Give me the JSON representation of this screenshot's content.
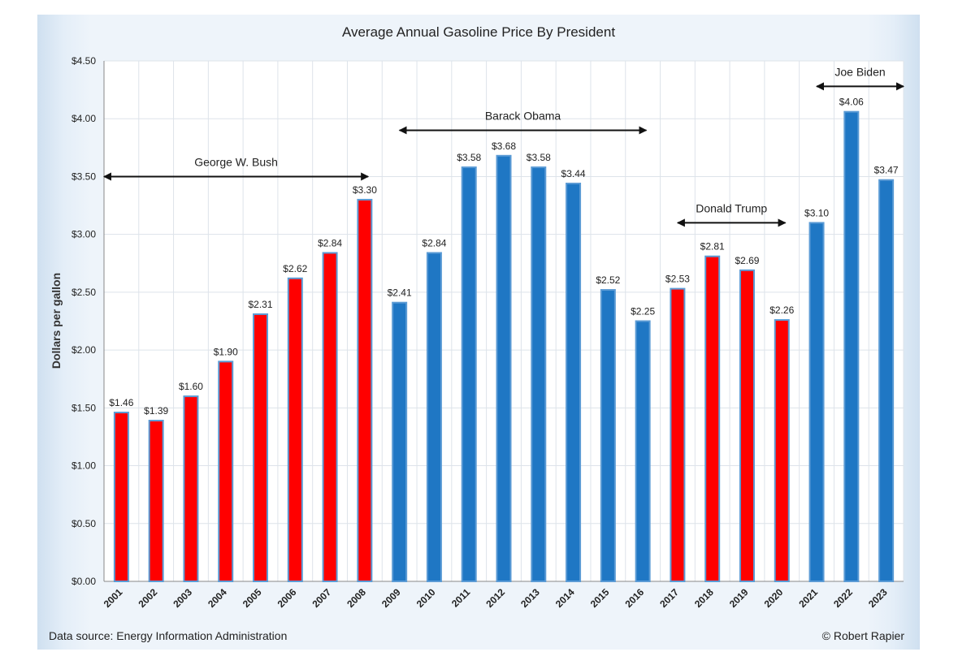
{
  "title": "Average Annual Gasoline Price By President",
  "footer": {
    "source": "Data source: Energy Information Administration",
    "credit": "© Robert Rapier"
  },
  "colors": {
    "red": "#ff0000",
    "blue": "#1f77c4",
    "grid": "#dde3ea",
    "outline": "#5b9bd5"
  },
  "chart_data": {
    "type": "bar",
    "title": "Average Annual Gasoline Price By President",
    "xlabel": "",
    "ylabel": "Dollars per gallon",
    "ylim": [
      0,
      4.5
    ],
    "yticks": [
      "$0.00",
      "$0.50",
      "$1.00",
      "$1.50",
      "$2.00",
      "$2.50",
      "$3.00",
      "$3.50",
      "$4.00",
      "$4.50"
    ],
    "grid": true,
    "categories": [
      "2001",
      "2002",
      "2003",
      "2004",
      "2005",
      "2006",
      "2007",
      "2008",
      "2009",
      "2010",
      "2011",
      "2012",
      "2013",
      "2014",
      "2015",
      "2016",
      "2017",
      "2018",
      "2019",
      "2020",
      "2021",
      "2022",
      "2023"
    ],
    "values": [
      1.46,
      1.39,
      1.6,
      1.9,
      2.31,
      2.62,
      2.84,
      3.3,
      2.41,
      2.84,
      3.58,
      3.68,
      3.58,
      3.44,
      2.52,
      2.25,
      2.53,
      2.81,
      2.69,
      2.26,
      3.1,
      4.06,
      3.47
    ],
    "value_labels": [
      "$1.46",
      "$1.39",
      "$1.60",
      "$1.90",
      "$2.31",
      "$2.62",
      "$2.84",
      "$3.30",
      "$2.41",
      "$2.84",
      "$3.58",
      "$3.68",
      "$3.58",
      "$3.44",
      "$2.52",
      "$2.25",
      "$2.53",
      "$2.81",
      "$2.69",
      "$2.26",
      "$3.10",
      "$4.06",
      "$3.47"
    ],
    "bar_colors": [
      "red",
      "red",
      "red",
      "red",
      "red",
      "red",
      "red",
      "red",
      "blue",
      "blue",
      "blue",
      "blue",
      "blue",
      "blue",
      "blue",
      "blue",
      "red",
      "red",
      "red",
      "red",
      "blue",
      "blue",
      "blue"
    ],
    "annotations": [
      {
        "text": "George W. Bush",
        "from_year": "2001",
        "to_year": "2008",
        "y": 3.5
      },
      {
        "text": "Barack Obama",
        "from_year": "2009",
        "to_year": "2016",
        "y": 3.9
      },
      {
        "text": "Donald Trump",
        "from_year": "2017",
        "to_year": "2020",
        "y": 3.1
      },
      {
        "text": "Joe Biden",
        "from_year": "2021",
        "to_year": "2023",
        "y": 4.28
      }
    ]
  }
}
